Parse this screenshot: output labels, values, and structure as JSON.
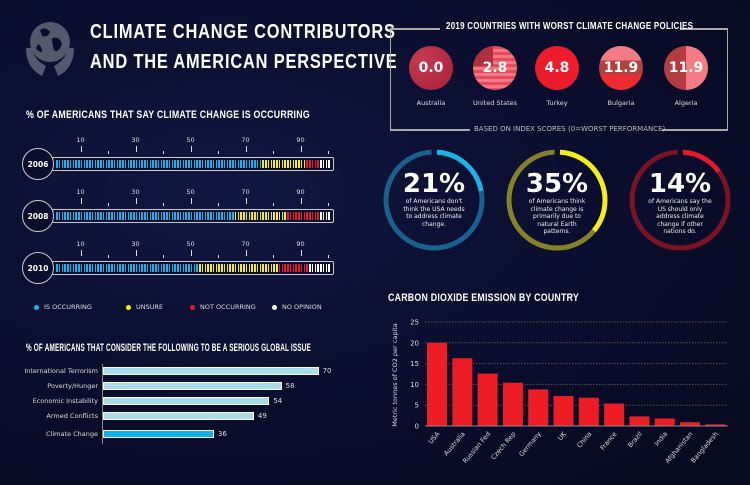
{
  "header": {
    "title_line1": "CLIMATE CHANGE CONTRIBUTORS",
    "title_line2": "AND THE AMERICAN PERSPECTIVE",
    "icon": "globe-in-hands-icon"
  },
  "colors": {
    "background": "#0a0d2c",
    "occurring": "#1ab3e8",
    "unsure": "#f5ee1a",
    "not_occurring": "#e8192c",
    "no_opinion": "#ffffff",
    "bar_light": "#a8dcea",
    "bar_highlight": "#0fb0ea",
    "co2_bar": "#ee1c25"
  },
  "worst_policies": {
    "title": "2019 COUNTRIES WITH WORST CLIMATE CHANGE POLICIES",
    "footnote": "BASED ON INDEX SCORES (0=WORST PERFORMANCE)",
    "countries": [
      {
        "name": "Australia",
        "score": "0.0"
      },
      {
        "name": "United States",
        "score": "2.8"
      },
      {
        "name": "Turkey",
        "score": "4.8"
      },
      {
        "name": "Bulgaria",
        "score": "11.9"
      },
      {
        "name": "Algeria",
        "score": "11.9"
      }
    ]
  },
  "stats": [
    {
      "pct": "21%",
      "value": 21,
      "desc": "of Americans don't think the USA needs to address climate change.",
      "color": "#1ab3e8",
      "track": "#17628f"
    },
    {
      "pct": "35%",
      "value": 35,
      "desc": "of Americans think climate change is primarily due to natural Earth patterns.",
      "color": "#f5ee1a",
      "track": "#85822a"
    },
    {
      "pct": "14%",
      "value": 14,
      "desc": "of Americans say the US should only address climate change if other nations do.",
      "color": "#e8192c",
      "track": "#7c1324"
    }
  ],
  "chart_data": [
    {
      "type": "bar",
      "title": "% OF AMERICANS THAT SAY CLIMATE CHANGE IS OCCURRING",
      "orientation": "stacked-horizontal",
      "tick_labels": [
        "10",
        "30",
        "50",
        "70",
        "90"
      ],
      "xlim": [
        0,
        100
      ],
      "legend": [
        "IS OCCURRING",
        "UNSURE",
        "NOT OCCURRING",
        "NO OPINION"
      ],
      "legend_placement": "bottom",
      "categories": [
        "2006",
        "2008",
        "2010"
      ],
      "series": [
        {
          "name": "IS OCCURRING",
          "values": [
            75,
            65,
            52
          ]
        },
        {
          "name": "UNSURE",
          "values": [
            16,
            19,
            29
          ]
        },
        {
          "name": "NOT OCCURRING",
          "values": [
            5,
            12,
            11
          ]
        },
        {
          "name": "NO OPINION",
          "values": [
            4,
            4,
            8
          ]
        }
      ]
    },
    {
      "type": "bar",
      "title": "% OF AMERICANS THAT CONSIDER THE FOLLOWING TO BE A SERIOUS GLOBAL ISSUE",
      "orientation": "horizontal",
      "categories": [
        "International Terrorism",
        "Poverty/Hunger",
        "Economic Instability",
        "Armed Conflicts",
        "Climate Change"
      ],
      "values": [
        70,
        58,
        54,
        49,
        36
      ],
      "xlim": [
        0,
        100
      ]
    },
    {
      "type": "bar",
      "title": "CARBON DIOXIDE EMISSION BY COUNTRY",
      "ylabel": "Metric tonnes of CO2 per capita",
      "xlabel": "",
      "ylim": [
        0,
        25
      ],
      "yticks": [
        "0",
        "5",
        "10",
        "15",
        "20",
        "25"
      ],
      "grid": true,
      "categories": [
        "USA",
        "Australia",
        "Russian Fed",
        "Czech Rep",
        "Germany",
        "UK",
        "China",
        "France",
        "Brazil",
        "India",
        "Afghanistan",
        "Bangladesh"
      ],
      "values": [
        20,
        16.3,
        12.6,
        10.4,
        8.8,
        7.2,
        6.8,
        5.4,
        2.3,
        1.8,
        0.9,
        0.4
      ]
    }
  ]
}
